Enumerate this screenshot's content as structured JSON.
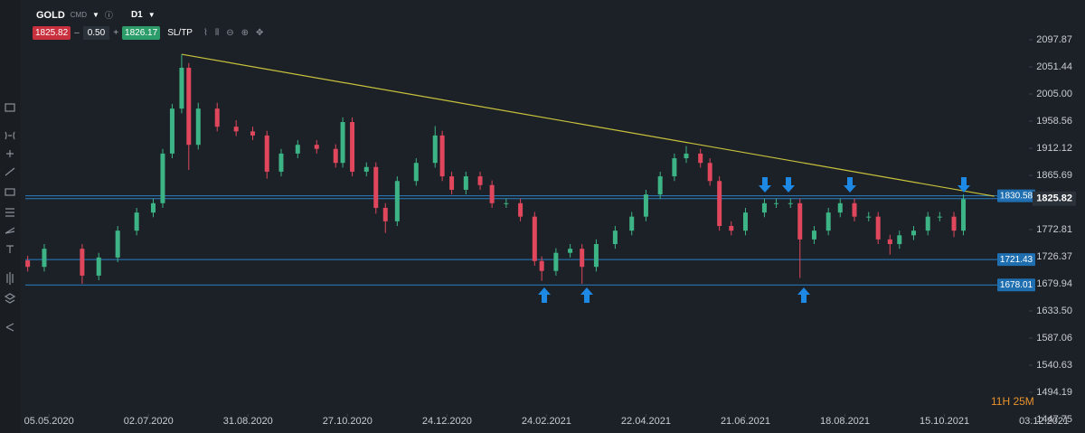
{
  "header": {
    "symbol": "GOLD",
    "market": "CMD",
    "timeframe": "D1",
    "bid": "1825.82",
    "spread": "0.50",
    "ask": "1826.17",
    "sltp": "SL/TP"
  },
  "chart_data": {
    "type": "candlestick",
    "x": [
      1,
      8,
      24,
      31,
      39,
      47,
      54,
      58,
      62,
      66,
      69,
      73,
      81,
      89,
      96,
      102,
      108,
      115,
      123,
      131,
      134,
      138,
      144,
      148,
      152,
      157,
      165,
      173,
      176,
      180,
      186,
      192,
      197,
      203,
      209,
      215,
      218,
      224,
      230,
      235,
      241,
      249,
      256,
      262,
      268,
      274,
      279,
      285,
      289,
      293,
      298,
      304,
      312,
      317,
      323,
      327,
      333,
      339,
      344,
      350,
      356,
      360,
      365,
      369,
      375,
      381,
      386,
      392,
      396
    ],
    "open": [
      1720,
      1709,
      1740,
      1694,
      1725,
      1771,
      1802,
      1818,
      1903,
      1980,
      2050,
      1918,
      1980,
      1949,
      1941,
      1934,
      1872,
      1903,
      1918,
      1911,
      1887,
      1957,
      1872,
      1880,
      1810,
      1787,
      1856,
      1887,
      1934,
      1864,
      1841,
      1864,
      1849,
      1818,
      1818,
      1795,
      1719,
      1702,
      1733,
      1740,
      1709,
      1748,
      1771,
      1795,
      1833,
      1864,
      1895,
      1903,
      1887,
      1856,
      1779,
      1771,
      1802,
      1818,
      1818,
      1818,
      1756,
      1771,
      1802,
      1818,
      1795,
      1795,
      1756,
      1748,
      1763,
      1771,
      1795,
      1795,
      1771
    ],
    "high": [
      1728,
      1748,
      1748,
      1733,
      1779,
      1810,
      1826,
      1911,
      1988,
      2073,
      2058,
      1990,
      1990,
      1960,
      1949,
      1942,
      1911,
      1926,
      1926,
      1919,
      1965,
      1965,
      1888,
      1888,
      1818,
      1864,
      1895,
      1950,
      1942,
      1872,
      1872,
      1872,
      1857,
      1826,
      1826,
      1803,
      1727,
      1741,
      1748,
      1748,
      1756,
      1779,
      1803,
      1841,
      1872,
      1903,
      1916,
      1911,
      1895,
      1864,
      1787,
      1810,
      1826,
      1826,
      1826,
      1826,
      1779,
      1810,
      1826,
      1826,
      1803,
      1803,
      1764,
      1771,
      1779,
      1803,
      1803,
      1803,
      1833
    ],
    "low": [
      1701,
      1701,
      1680,
      1686,
      1717,
      1763,
      1794,
      1810,
      1895,
      1972,
      1875,
      1910,
      1941,
      1933,
      1926,
      1860,
      1864,
      1895,
      1903,
      1879,
      1879,
      1864,
      1864,
      1800,
      1767,
      1779,
      1848,
      1879,
      1856,
      1833,
      1833,
      1841,
      1810,
      1810,
      1787,
      1711,
      1685,
      1694,
      1725,
      1680,
      1701,
      1740,
      1763,
      1787,
      1825,
      1856,
      1887,
      1879,
      1848,
      1771,
      1763,
      1763,
      1794,
      1810,
      1810,
      1690,
      1748,
      1763,
      1794,
      1787,
      1787,
      1748,
      1730,
      1740,
      1755,
      1763,
      1787,
      1760,
      1763
    ],
    "close": [
      1709,
      1740,
      1694,
      1725,
      1771,
      1802,
      1818,
      1903,
      1980,
      2050,
      1918,
      1980,
      1949,
      1941,
      1934,
      1872,
      1903,
      1918,
      1911,
      1887,
      1957,
      1872,
      1880,
      1810,
      1787,
      1856,
      1887,
      1934,
      1864,
      1841,
      1864,
      1849,
      1818,
      1818,
      1795,
      1719,
      1702,
      1733,
      1740,
      1709,
      1748,
      1771,
      1795,
      1833,
      1864,
      1895,
      1903,
      1887,
      1856,
      1779,
      1771,
      1802,
      1818,
      1818,
      1818,
      1756,
      1771,
      1802,
      1818,
      1795,
      1795,
      1756,
      1748,
      1763,
      1771,
      1795,
      1795,
      1771,
      1825
    ],
    "up_color": "#3db485",
    "down_color": "#e0475c",
    "xlim": [
      0,
      430
    ],
    "xticks": [
      {
        "value": 10,
        "label": "05.05.2020"
      },
      {
        "value": 52,
        "label": "02.07.2020"
      },
      {
        "value": 94,
        "label": "31.08.2020"
      },
      {
        "value": 136,
        "label": "27.10.2020"
      },
      {
        "value": 178,
        "label": "24.12.2020"
      },
      {
        "value": 220,
        "label": "24.02.2021"
      },
      {
        "value": 262,
        "label": "22.04.2021"
      },
      {
        "value": 304,
        "label": "21.06.2021"
      },
      {
        "value": 346,
        "label": "18.08.2021"
      },
      {
        "value": 388,
        "label": "15.10.2021"
      },
      {
        "value": 430,
        "label": "03.12.2021"
      }
    ],
    "ylim": [
      1441.5,
      2166
    ],
    "yticks": [
      2097.87,
      2051.44,
      {
        "value": 2005,
        "label": "2005.00"
      },
      1958.56,
      1912.12,
      1865.69,
      1772.81,
      1726.37,
      1679.94,
      {
        "value": 1633.5,
        "label": "1633.50"
      },
      1587.06,
      1540.63,
      1494.19,
      1447.75
    ],
    "last_price": 1825.82,
    "price_lines": [
      1830.58,
      1721.43,
      1678.01
    ],
    "line_color": "#2a7fc4",
    "trendline": {
      "x": [
        66,
        409
      ],
      "y": [
        2073,
        1830
      ],
      "color": "#c9c23c"
    }
  },
  "footer": {
    "countdown": "11H 25M"
  }
}
